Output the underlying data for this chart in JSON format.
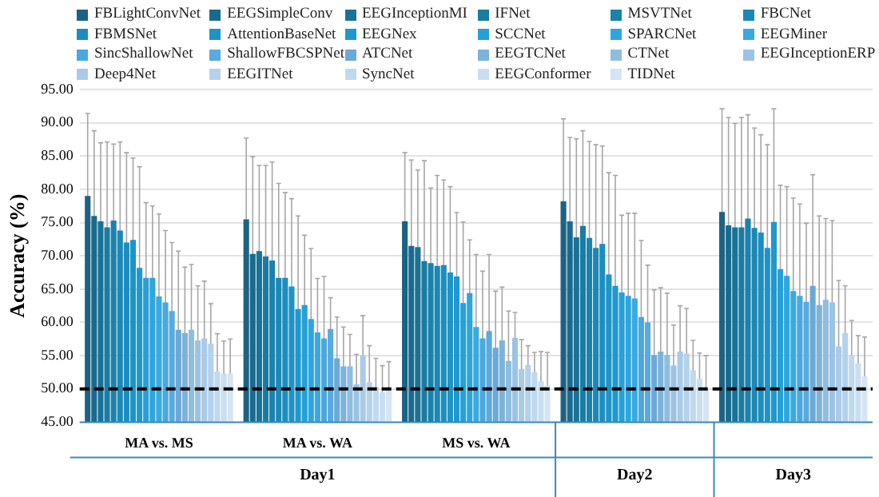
{
  "chart_data": {
    "type": "bar",
    "ylabel": "Accuracy (%)",
    "categories": [
      "MA vs. MS",
      "MA vs. WA",
      "MS vs. WA",
      null,
      null
    ],
    "annotations": [
      "Day1",
      "Day2",
      "Day3"
    ],
    "ylim": [
      45,
      95
    ],
    "yticks": [
      {
        "value": 45,
        "label": "45.00"
      },
      {
        "value": 50,
        "label": "50.00"
      },
      {
        "value": 55,
        "label": "55.00"
      },
      {
        "value": 60,
        "label": "60.00"
      },
      {
        "value": 65,
        "label": "65.00"
      },
      {
        "value": 70,
        "label": "70.00"
      },
      {
        "value": 75,
        "label": "75.00"
      },
      {
        "value": 80,
        "label": "80.00"
      },
      {
        "value": 85,
        "label": "85.00"
      },
      {
        "value": 90,
        "label": "90.00"
      },
      {
        "value": 95,
        "label": "95.00"
      }
    ],
    "grid": "y",
    "legend": "top",
    "ref_lines": [
      {
        "axis": "y",
        "value": 50,
        "color": "#000000",
        "line_style": "dashed"
      }
    ],
    "series": [
      {
        "name": "FBLightConvNet",
        "color": "#1b6384",
        "values": [
          79.0,
          75.5,
          75.2,
          78.2,
          76.6
        ],
        "errors": [
          12.4,
          12.2,
          10.3,
          12.4,
          15.5
        ]
      },
      {
        "name": "EEGSimpleConv",
        "color": "#1a6a8e",
        "values": [
          76.0,
          70.3,
          71.5,
          75.2,
          74.6
        ],
        "errors": [
          12.8,
          14.6,
          12.9,
          12.6,
          16.2
        ]
      },
      {
        "name": "EEGInceptionMI",
        "color": "#197397",
        "values": [
          75.2,
          70.7,
          71.3,
          72.8,
          74.3
        ],
        "errors": [
          11.8,
          12.9,
          11.6,
          14.8,
          15.6
        ]
      },
      {
        "name": "IFNet",
        "color": "#1a7ca2",
        "values": [
          74.3,
          69.9,
          69.2,
          74.5,
          74.3
        ],
        "errors": [
          12.8,
          13.7,
          15.1,
          14.3,
          16.5
        ]
      },
      {
        "name": "MSVTNet",
        "color": "#1a82ad",
        "values": [
          75.3,
          69.3,
          68.9,
          72.7,
          75.6
        ],
        "errors": [
          11.5,
          14.8,
          11.3,
          14.5,
          15.6
        ]
      },
      {
        "name": "FBCNet",
        "color": "#1b88b5",
        "values": [
          73.8,
          66.7,
          68.5,
          71.2,
          74.2
        ],
        "errors": [
          13.3,
          14.2,
          13.6,
          15.5,
          15.0
        ]
      },
      {
        "name": "FBMSNet",
        "color": "#1c8ebe",
        "values": [
          72.0,
          66.7,
          68.6,
          71.8,
          73.5
        ],
        "errors": [
          13.5,
          12.8,
          12.8,
          14.7,
          14.7
        ]
      },
      {
        "name": "AttentionBaseNet",
        "color": "#1e93c6",
        "values": [
          72.4,
          65.4,
          67.5,
          67.2,
          71.2
        ],
        "errors": [
          12.3,
          13.2,
          12.9,
          15.3,
          15.5
        ]
      },
      {
        "name": "EEGNex",
        "color": "#1f98cc",
        "values": [
          68.2,
          62.0,
          66.9,
          65.5,
          75.1
        ],
        "errors": [
          15.2,
          14.0,
          9.6,
          16.6,
          17.0
        ]
      },
      {
        "name": "SCCNet",
        "color": "#26a0d6",
        "values": [
          66.7,
          62.6,
          62.9,
          64.5,
          68.0
        ],
        "errors": [
          11.3,
          10.5,
          12.2,
          11.6,
          12.6
        ]
      },
      {
        "name": "SPARCNet",
        "color": "#2ea6dc",
        "values": [
          66.7,
          60.5,
          64.4,
          64.0,
          67.0
        ],
        "errors": [
          10.8,
          10.6,
          8.0,
          12.4,
          13.4
        ]
      },
      {
        "name": "EEGMiner",
        "color": "#3aa9df",
        "values": [
          63.9,
          58.5,
          59.3,
          63.6,
          64.7
        ],
        "errors": [
          12.4,
          8.1,
          10.9,
          12.8,
          14.0
        ]
      },
      {
        "name": "SincShallowNet",
        "color": "#4aa8dc",
        "values": [
          63.0,
          57.6,
          57.6,
          60.8,
          64.0
        ],
        "errors": [
          10.8,
          9.3,
          10.1,
          11.5,
          13.8
        ]
      },
      {
        "name": "ShallowFBCSPNet",
        "color": "#5aaade",
        "values": [
          61.7,
          59.0,
          58.7,
          60.0,
          63.1
        ],
        "errors": [
          10.3,
          4.7,
          11.5,
          8.6,
          11.8
        ]
      },
      {
        "name": "ATCNet",
        "color": "#6ba9d6",
        "values": [
          58.9,
          54.6,
          56.2,
          55.1,
          65.5
        ],
        "errors": [
          11.8,
          6.2,
          8.5,
          9.8,
          16.7
        ]
      },
      {
        "name": "EEGTCNet",
        "color": "#7eb3d9",
        "values": [
          58.4,
          53.4,
          57.3,
          55.6,
          62.6
        ],
        "errors": [
          9.9,
          5.9,
          8.0,
          9.6,
          13.4
        ]
      },
      {
        "name": "CTNet",
        "color": "#8fbde0",
        "values": [
          58.9,
          53.4,
          54.2,
          55.1,
          63.4
        ],
        "errors": [
          9.8,
          4.8,
          7.5,
          9.3,
          12.2
        ]
      },
      {
        "name": "EEGInceptionERP",
        "color": "#9cc3e3",
        "values": [
          57.3,
          50.7,
          57.7,
          53.5,
          63.0
        ],
        "errors": [
          8.2,
          4.5,
          3.8,
          6.1,
          12.3
        ]
      },
      {
        "name": "Deep4Net",
        "color": "#a9cbe8",
        "values": [
          57.6,
          55.0,
          53.0,
          55.6,
          56.4
        ],
        "errors": [
          8.6,
          6.0,
          4.4,
          6.9,
          9.9
        ]
      },
      {
        "name": "EEGITNet",
        "color": "#b4d2ec",
        "values": [
          56.8,
          51.0,
          53.6,
          55.3,
          58.4
        ],
        "errors": [
          6.0,
          5.5,
          2.9,
          6.8,
          7.1
        ]
      },
      {
        "name": "SyncNet",
        "color": "#bfd9ef",
        "values": [
          52.6,
          50.3,
          52.5,
          52.8,
          55.1
        ],
        "errors": [
          5.7,
          4.3,
          3.0,
          4.5,
          5.2
        ]
      },
      {
        "name": "EEGConformer",
        "color": "#c9dff1",
        "values": [
          52.3,
          49.5,
          51.2,
          51.5,
          53.8
        ],
        "errors": [
          4.9,
          4.0,
          4.4,
          3.9,
          4.2
        ]
      },
      {
        "name": "TIDNet",
        "color": "#d4e5f4",
        "values": [
          52.3,
          49.8,
          50.5,
          50.0,
          51.9
        ],
        "errors": [
          5.2,
          4.3,
          5.0,
          5.0,
          5.9
        ]
      }
    ]
  }
}
